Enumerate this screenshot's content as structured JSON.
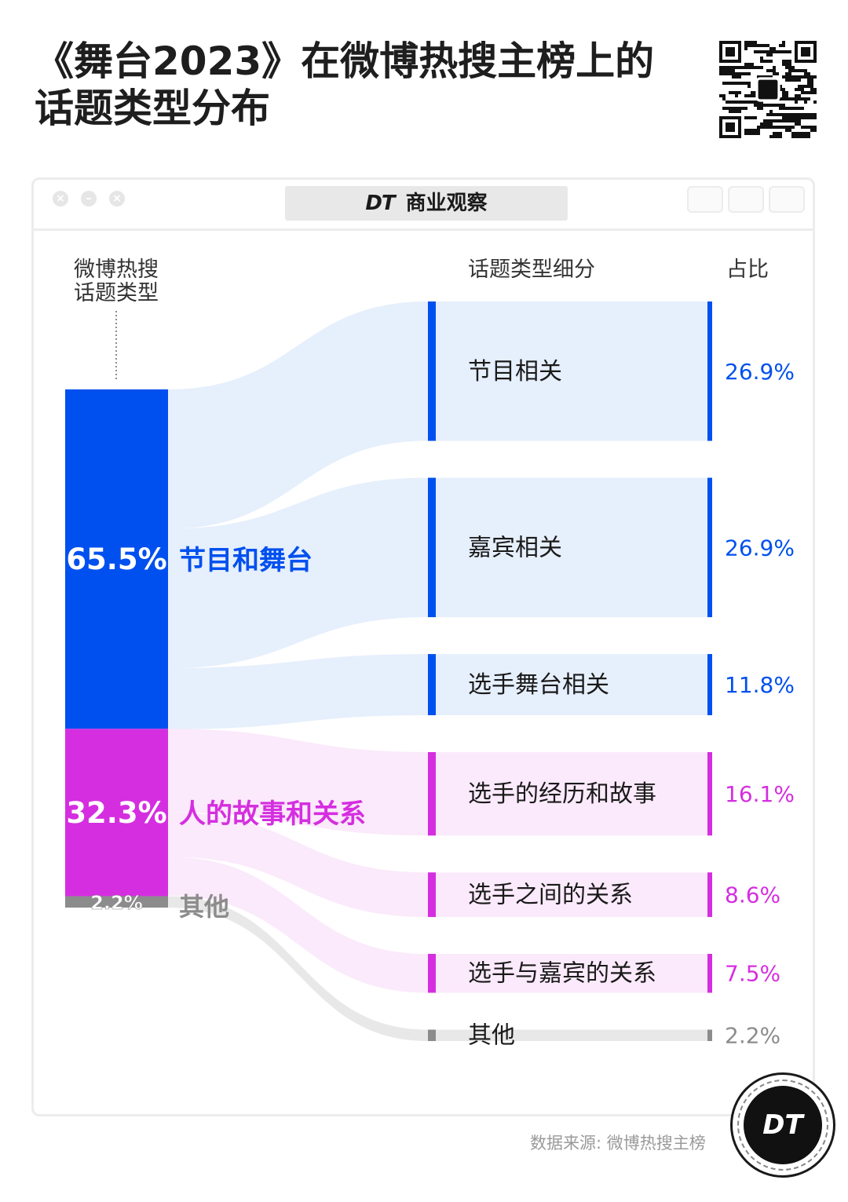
{
  "title_line1": "《舞台2023》在微博热搜主榜上的",
  "title_line2": "话题类型分布",
  "brand_text": "商业观察",
  "brand_logo": "DT",
  "source": "数据来源: 微博热搜主榜",
  "colors": {
    "blue": "#0050ef",
    "magenta": "#d52ee0",
    "gray": "#8c8c8c",
    "blue_band": "#e3edfc",
    "pink_band": "#fbe8fb",
    "gray_band": "#e4e4e4"
  },
  "chart_data": {
    "type": "sankey",
    "headers": {
      "left_line1": "微博热搜",
      "left_line2": "话题类型",
      "middle": "话题类型细分",
      "right": "占比"
    },
    "categories": [
      {
        "label": "节目和舞台",
        "value": 65.5,
        "value_text": "65.5%",
        "color": "#0050ef"
      },
      {
        "label": "人的故事和关系",
        "value": 32.3,
        "value_text": "32.3%",
        "color": "#d52ee0"
      },
      {
        "label": "其他",
        "value": 2.2,
        "value_text": "2.2%",
        "color": "#8c8c8c"
      }
    ],
    "subcategories": [
      {
        "label": "节目相关",
        "value": 26.9,
        "value_text": "26.9%",
        "parent": 0
      },
      {
        "label": "嘉宾相关",
        "value": 26.9,
        "value_text": "26.9%",
        "parent": 0
      },
      {
        "label": "选手舞台相关",
        "value": 11.8,
        "value_text": "11.8%",
        "parent": 0
      },
      {
        "label": "选手的经历和故事",
        "value": 16.1,
        "value_text": "16.1%",
        "parent": 1
      },
      {
        "label": "选手之间的关系",
        "value": 8.6,
        "value_text": "8.6%",
        "parent": 1
      },
      {
        "label": "选手与嘉宾的关系",
        "value": 7.5,
        "value_text": "7.5%",
        "parent": 1
      },
      {
        "label": "其他",
        "value": 2.2,
        "value_text": "2.2%",
        "parent": 2
      }
    ]
  }
}
